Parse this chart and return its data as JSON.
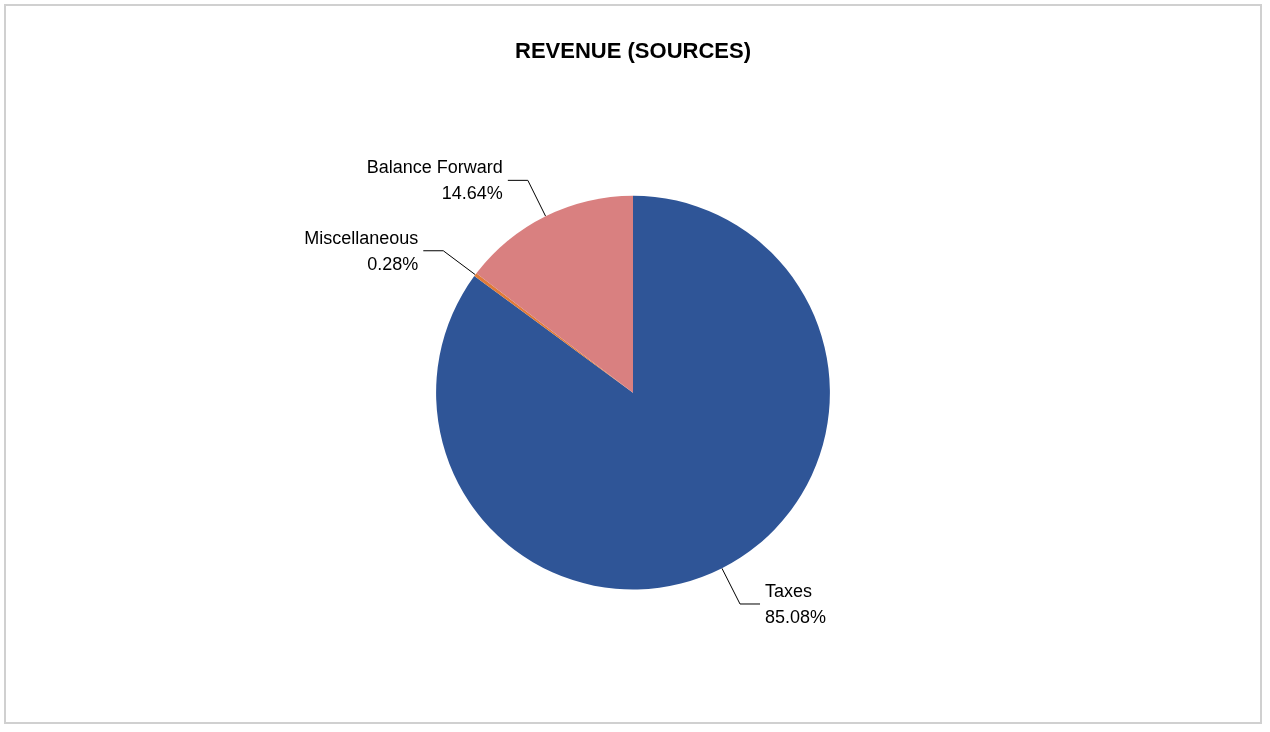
{
  "chart_data": {
    "type": "pie",
    "title": "REVENUE (SOURCES)",
    "categories": [
      "Taxes",
      "Miscellaneous",
      "Balance Forward"
    ],
    "values": [
      85.08,
      0.28,
      14.64
    ],
    "value_labels": [
      "85.08%",
      "0.28%",
      "14.64%"
    ],
    "colors": [
      "#2f5597",
      "#e07b39",
      "#d98080"
    ],
    "legend": false
  }
}
